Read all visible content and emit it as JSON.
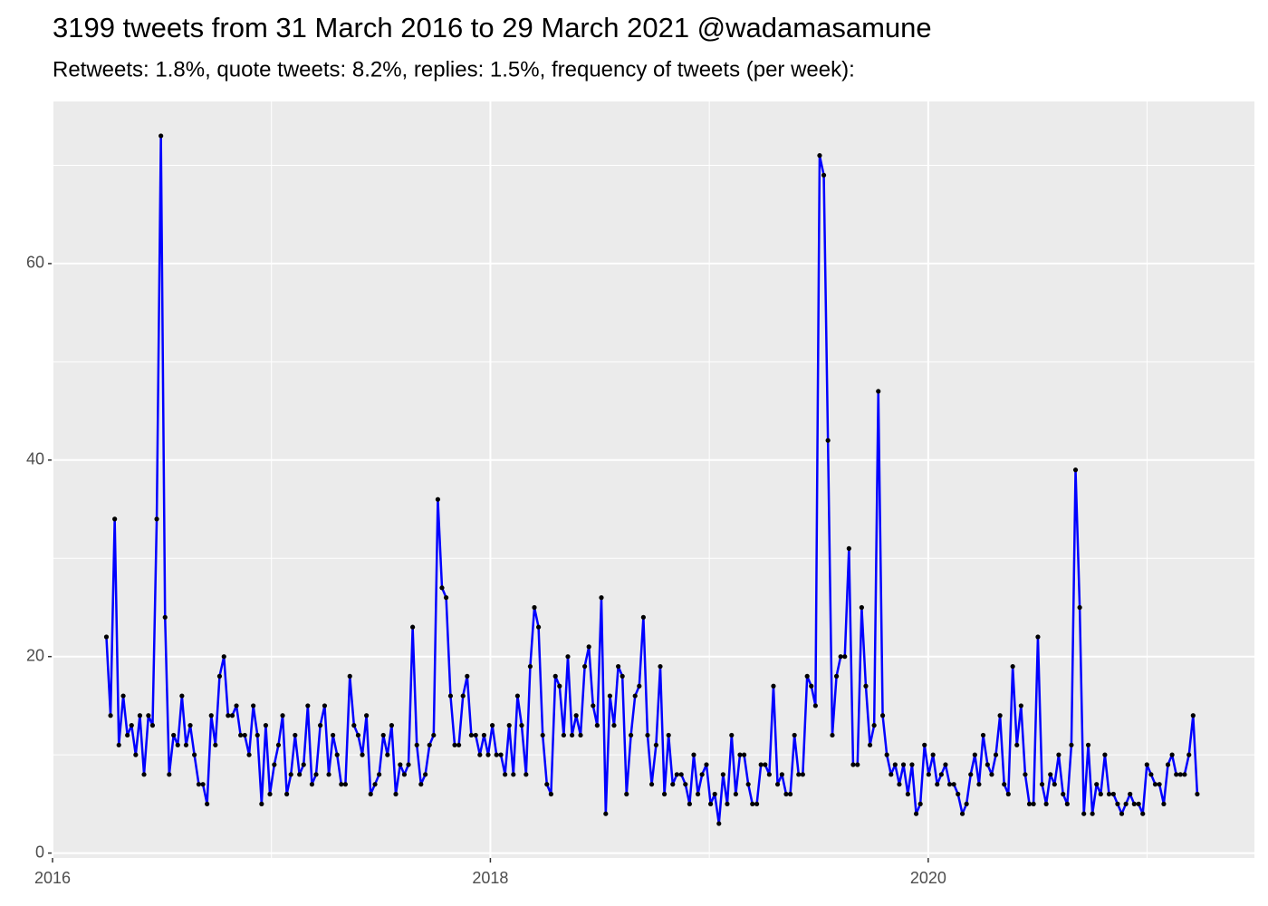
{
  "chart_data": {
    "type": "line",
    "title": "3199 tweets from 31 March 2016 to 29 March 2021 @wadamasamune",
    "subtitle": "Retweets: 1.8%, quote tweets: 8.2%, replies: 1.5%, frequency of tweets (per week):",
    "color": "#0000FF",
    "point_color": "#000000",
    "grid": true,
    "xlim": [
      2016.0,
      2021.49
    ],
    "xticks": [
      2016,
      2018,
      2020
    ],
    "xminor": [
      2017,
      2019,
      2021
    ],
    "ylim": [
      -0.5,
      76.5
    ],
    "yticks": [
      0,
      20,
      40,
      60
    ],
    "yminor": [
      10,
      30,
      50,
      70
    ],
    "x": [
      2016.246,
      2016.265,
      2016.284,
      2016.303,
      2016.323,
      2016.342,
      2016.361,
      2016.38,
      2016.399,
      2016.418,
      2016.438,
      2016.457,
      2016.476,
      2016.495,
      2016.514,
      2016.533,
      2016.553,
      2016.572,
      2016.591,
      2016.61,
      2016.629,
      2016.648,
      2016.668,
      2016.687,
      2016.706,
      2016.725,
      2016.744,
      2016.763,
      2016.783,
      2016.802,
      2016.821,
      2016.84,
      2016.859,
      2016.878,
      2016.898,
      2016.917,
      2016.936,
      2016.955,
      2016.974,
      2016.993,
      2017.013,
      2017.032,
      2017.051,
      2017.07,
      2017.089,
      2017.108,
      2017.128,
      2017.147,
      2017.166,
      2017.185,
      2017.204,
      2017.223,
      2017.243,
      2017.262,
      2017.281,
      2017.3,
      2017.319,
      2017.338,
      2017.358,
      2017.377,
      2017.396,
      2017.415,
      2017.434,
      2017.453,
      2017.473,
      2017.492,
      2017.511,
      2017.53,
      2017.549,
      2017.568,
      2017.588,
      2017.607,
      2017.626,
      2017.645,
      2017.664,
      2017.683,
      2017.703,
      2017.722,
      2017.741,
      2017.76,
      2017.779,
      2017.798,
      2017.818,
      2017.837,
      2017.856,
      2017.875,
      2017.894,
      2017.913,
      2017.933,
      2017.952,
      2017.971,
      2017.99,
      2018.009,
      2018.028,
      2018.048,
      2018.067,
      2018.086,
      2018.105,
      2018.124,
      2018.143,
      2018.163,
      2018.182,
      2018.201,
      2018.22,
      2018.239,
      2018.258,
      2018.277,
      2018.297,
      2018.316,
      2018.335,
      2018.354,
      2018.373,
      2018.392,
      2018.412,
      2018.431,
      2018.45,
      2018.469,
      2018.488,
      2018.507,
      2018.527,
      2018.546,
      2018.565,
      2018.584,
      2018.603,
      2018.622,
      2018.642,
      2018.661,
      2018.68,
      2018.699,
      2018.718,
      2018.737,
      2018.757,
      2018.776,
      2018.795,
      2018.814,
      2018.833,
      2018.852,
      2018.872,
      2018.891,
      2018.91,
      2018.929,
      2018.948,
      2018.967,
      2018.987,
      2019.006,
      2019.025,
      2019.044,
      2019.063,
      2019.082,
      2019.102,
      2019.121,
      2019.14,
      2019.159,
      2019.178,
      2019.197,
      2019.217,
      2019.236,
      2019.255,
      2019.274,
      2019.293,
      2019.312,
      2019.332,
      2019.351,
      2019.37,
      2019.389,
      2019.408,
      2019.427,
      2019.447,
      2019.466,
      2019.485,
      2019.504,
      2019.523,
      2019.542,
      2019.562,
      2019.581,
      2019.6,
      2019.619,
      2019.638,
      2019.657,
      2019.677,
      2019.696,
      2019.715,
      2019.734,
      2019.753,
      2019.772,
      2019.792,
      2019.811,
      2019.83,
      2019.849,
      2019.868,
      2019.887,
      2019.907,
      2019.926,
      2019.945,
      2019.964,
      2019.983,
      2020.002,
      2020.022,
      2020.041,
      2020.06,
      2020.079,
      2020.098,
      2020.117,
      2020.136,
      2020.156,
      2020.175,
      2020.194,
      2020.213,
      2020.232,
      2020.251,
      2020.271,
      2020.29,
      2020.309,
      2020.328,
      2020.347,
      2020.366,
      2020.386,
      2020.405,
      2020.424,
      2020.443,
      2020.462,
      2020.481,
      2020.501,
      2020.52,
      2020.539,
      2020.558,
      2020.577,
      2020.596,
      2020.616,
      2020.635,
      2020.654,
      2020.673,
      2020.692,
      2020.711,
      2020.731,
      2020.75,
      2020.769,
      2020.788,
      2020.807,
      2020.826,
      2020.846,
      2020.865,
      2020.884,
      2020.903,
      2020.922,
      2020.941,
      2020.961,
      2020.98,
      2020.999,
      2021.018,
      2021.037,
      2021.056,
      2021.076,
      2021.095,
      2021.114,
      2021.133,
      2021.152,
      2021.171,
      2021.191,
      2021.21,
      2021.229
    ],
    "values": [
      22,
      14,
      34,
      11,
      16,
      12,
      13,
      10,
      14,
      8,
      14,
      13,
      34,
      73,
      24,
      8,
      12,
      11,
      16,
      11,
      13,
      10,
      7,
      7,
      5,
      14,
      11,
      18,
      20,
      14,
      14,
      15,
      12,
      12,
      10,
      15,
      12,
      5,
      13,
      6,
      9,
      11,
      14,
      6,
      8,
      12,
      8,
      9,
      15,
      7,
      8,
      13,
      15,
      8,
      12,
      10,
      7,
      7,
      18,
      13,
      12,
      10,
      14,
      6,
      7,
      8,
      12,
      10,
      13,
      6,
      9,
      8,
      9,
      23,
      11,
      7,
      8,
      11,
      12,
      36,
      27,
      26,
      16,
      11,
      11,
      16,
      18,
      12,
      12,
      10,
      12,
      10,
      13,
      10,
      10,
      8,
      13,
      8,
      16,
      13,
      8,
      19,
      25,
      23,
      12,
      7,
      6,
      18,
      17,
      12,
      20,
      12,
      14,
      12,
      19,
      21,
      15,
      13,
      26,
      4,
      16,
      13,
      19,
      18,
      6,
      12,
      16,
      17,
      24,
      12,
      7,
      11,
      19,
      6,
      12,
      7,
      8,
      8,
      7,
      5,
      10,
      6,
      8,
      9,
      5,
      6,
      3,
      8,
      5,
      12,
      6,
      10,
      10,
      7,
      5,
      5,
      9,
      9,
      8,
      17,
      7,
      8,
      6,
      6,
      12,
      8,
      8,
      18,
      17,
      15,
      71,
      69,
      42,
      12,
      18,
      20,
      20,
      31,
      9,
      9,
      25,
      17,
      11,
      13,
      47,
      14,
      10,
      8,
      9,
      7,
      9,
      6,
      9,
      4,
      5,
      11,
      8,
      10,
      7,
      8,
      9,
      7,
      7,
      6,
      4,
      5,
      8,
      10,
      7,
      12,
      9,
      8,
      10,
      14,
      7,
      6,
      19,
      11,
      15,
      8,
      5,
      5,
      22,
      7,
      5,
      8,
      7,
      10,
      6,
      5,
      11,
      39,
      25,
      4,
      11,
      4,
      7,
      6,
      10,
      6,
      6,
      5,
      4,
      5,
      6,
      5,
      5,
      4,
      9,
      8,
      7,
      7,
      5,
      9,
      10,
      8,
      8,
      8,
      10,
      14,
      6
    ]
  }
}
